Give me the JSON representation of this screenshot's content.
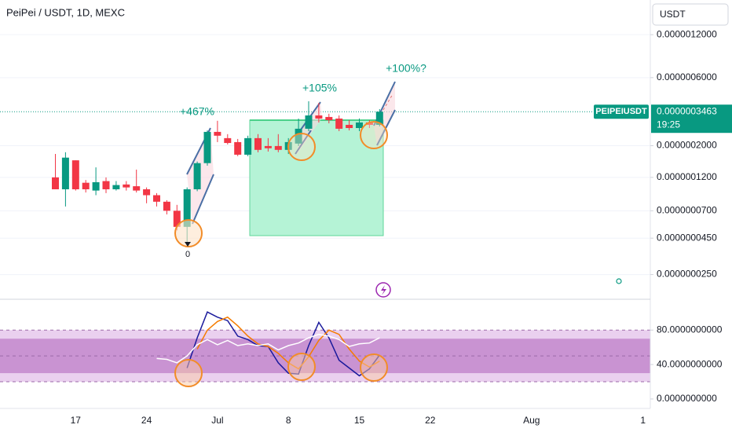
{
  "chart_data": [
    {
      "type": "candlestick",
      "title": "PeiPei / USDT, 1D, MEXC",
      "currency": "USDT",
      "symbol_label": "PEIPEIUSDT",
      "countdown": "19:25",
      "last_price": {
        "value": 3.463e-07,
        "label": "0.0000003463"
      },
      "annotations": [
        "+467%",
        "+105%",
        "+100%?",
        "0"
      ],
      "log_scale": true,
      "grid": true,
      "up_color": "#089981",
      "down_color": "#f23645",
      "ylim": [
        1.7e-08,
        2.1e-06
      ],
      "yticks": [
        {
          "value": 1.2e-06,
          "label": "0.0000012000"
        },
        {
          "value": 6e-07,
          "label": "0.0000006000"
        },
        {
          "value": 2e-07,
          "label": "0.0000002000"
        },
        {
          "value": 1.2e-07,
          "label": "0.0000001200"
        },
        {
          "value": 7e-08,
          "label": "0.0000000700"
        },
        {
          "value": 4.5e-08,
          "label": "0.0000000450"
        },
        {
          "value": 2.5e-08,
          "label": "0.0000000250"
        }
      ],
      "categories": [
        null,
        null,
        null,
        null,
        null,
        null,
        null,
        "17",
        null,
        null,
        null,
        null,
        null,
        null,
        "24",
        null,
        null,
        null,
        null,
        null,
        null,
        "Jul",
        null,
        null,
        null,
        null,
        null,
        null,
        "8",
        null,
        null,
        null,
        null,
        null,
        null,
        "15",
        null,
        null,
        null,
        null,
        null,
        null,
        "22",
        null,
        null,
        null,
        null,
        null,
        null,
        null,
        null,
        null,
        "Aug",
        null,
        null,
        null,
        null,
        null,
        null,
        null,
        null,
        null,
        null,
        "1"
      ],
      "open": [
        null,
        null,
        null,
        null,
        null,
        1.2e-07,
        9.9e-08,
        1.58e-07,
        1.1e-07,
        9.7e-08,
        1.13e-07,
        9.9e-08,
        1.07e-07,
        1.04e-07,
        9.9e-08,
        9e-08,
        8.1e-08,
        7e-08,
        5.4e-08,
        9.9e-08,
        1.51e-07,
        2.5e-07,
        2.26e-07,
        2.12e-07,
        1.73e-07,
        2.26e-07,
        1.99e-07,
        1.99e-07,
        1.87e-07,
        2.07e-07,
        2.63e-07,
        3.26e-07,
        3.18e-07,
        3.1e-07,
        2.8e-07,
        2.66e-07,
        2.91e-07,
        2.8e-07,
        null,
        null,
        null,
        null,
        null,
        null,
        null,
        null,
        null,
        null,
        null,
        null,
        null,
        null,
        null,
        null,
        null,
        null,
        null,
        null,
        null,
        null,
        null,
        null,
        null,
        null
      ],
      "high": [
        null,
        null,
        null,
        null,
        null,
        1.75e-07,
        1.8e-07,
        1.58e-07,
        1.15e-07,
        1.41e-07,
        1.2e-07,
        1.13e-07,
        1.13e-07,
        1.36e-07,
        1.02e-07,
        9.3e-08,
        8.3e-08,
        7.7e-08,
        1.02e-07,
        1.55e-07,
        2.56e-07,
        2.99e-07,
        2.41e-07,
        2.23e-07,
        2.35e-07,
        2.41e-07,
        2.26e-07,
        2.41e-07,
        2.26e-07,
        3.1e-07,
        4.1e-07,
        3.99e-07,
        3.35e-07,
        3.26e-07,
        3.02e-07,
        3.1e-07,
        3.02e-07,
        3.61e-07,
        null,
        null,
        null,
        null,
        null,
        null,
        null,
        null,
        null,
        null,
        null,
        null,
        null,
        null,
        null,
        null,
        null,
        null,
        null,
        null,
        null,
        null,
        null,
        null,
        null,
        null
      ],
      "low": [
        null,
        null,
        null,
        null,
        null,
        9.9e-08,
        7.5e-08,
        9.7e-08,
        9.4e-08,
        9e-08,
        9.3e-08,
        9.7e-08,
        9.7e-08,
        9.4e-08,
        7.9e-08,
        7.5e-08,
        6.6e-08,
        5.1e-08,
        4.1e-08,
        9.6e-08,
        1.45e-07,
        2.12e-07,
        2.04e-07,
        1.69e-07,
        1.69e-07,
        1.8e-07,
        1.82e-07,
        1.8e-07,
        1.75e-07,
        1.99e-07,
        2.53e-07,
        2.91e-07,
        2.87e-07,
        2.53e-07,
        2.56e-07,
        2.53e-07,
        2.66e-07,
        2.73e-07,
        null,
        null,
        null,
        null,
        null,
        null,
        null,
        null,
        null,
        null,
        null,
        null,
        null,
        null,
        null,
        null,
        null,
        null,
        null,
        null,
        null,
        null,
        null,
        null,
        null,
        null
      ],
      "close": [
        null,
        null,
        null,
        null,
        null,
        9.9e-08,
        1.65e-07,
        9.9e-08,
        9.9e-08,
        1.11e-07,
        9.9e-08,
        1.06e-07,
        1.02e-07,
        9.7e-08,
        9e-08,
        8.1e-08,
        7e-08,
        5.4e-08,
        9.9e-08,
        1.51e-07,
        2.5e-07,
        2.35e-07,
        2.09e-07,
        1.73e-07,
        2.26e-07,
        1.87e-07,
        1.92e-07,
        1.87e-07,
        2.12e-07,
        2.63e-07,
        3.26e-07,
        3.1e-07,
        3.02e-07,
        2.63e-07,
        2.66e-07,
        2.91e-07,
        2.8e-07,
        3.463e-07,
        null,
        null,
        null,
        null,
        null,
        null,
        null,
        null,
        null,
        null,
        null,
        null,
        null,
        null,
        null,
        null,
        null,
        null,
        null,
        null,
        null,
        null,
        null,
        null,
        null,
        null
      ]
    },
    {
      "type": "line",
      "ylim": [
        -11,
        114
      ],
      "yticks": [
        {
          "value": 80,
          "label": "80.0000000000"
        },
        {
          "value": 40,
          "label": "40.0000000000"
        },
        {
          "value": 0,
          "label": "0.0000000000"
        }
      ],
      "bands": [
        [
          20,
          80
        ],
        [
          30,
          70
        ]
      ],
      "band_colors": [
        "#ead0ef",
        "#c993d2"
      ],
      "levels": [
        80,
        50,
        20
      ],
      "series": [
        {
          "color": "#1a1a9c",
          "values": [
            null,
            null,
            null,
            null,
            null,
            null,
            null,
            null,
            null,
            null,
            null,
            null,
            null,
            null,
            null,
            null,
            null,
            null,
            36,
            71,
            101,
            95,
            91,
            73,
            69,
            62,
            61,
            42,
            30,
            29,
            62,
            89,
            71,
            45,
            36,
            27,
            35,
            51,
            null,
            null,
            null,
            null,
            null,
            null,
            null,
            null,
            null,
            null,
            null,
            null,
            null,
            null,
            null,
            null,
            null,
            null,
            null,
            null,
            null,
            null,
            null,
            null,
            null,
            null
          ]
        },
        {
          "color": "#f57c00",
          "values": [
            null,
            null,
            null,
            null,
            null,
            null,
            null,
            null,
            null,
            null,
            null,
            null,
            null,
            null,
            null,
            null,
            null,
            null,
            null,
            58,
            80,
            90,
            95,
            85,
            73,
            64,
            61,
            53,
            42,
            35,
            49,
            68,
            80,
            75,
            58,
            44,
            37,
            44,
            null,
            null,
            null,
            null,
            null,
            null,
            null,
            null,
            null,
            null,
            null,
            null,
            null,
            null,
            null,
            null,
            null,
            null,
            null,
            null,
            null,
            null,
            null,
            null,
            null,
            null
          ]
        },
        {
          "color": "#ffffff",
          "values": [
            null,
            null,
            null,
            null,
            null,
            null,
            null,
            null,
            null,
            null,
            null,
            null,
            null,
            null,
            null,
            47,
            46,
            42,
            50,
            63,
            69,
            63,
            68,
            62,
            64,
            62,
            64,
            57,
            62,
            65,
            71,
            75,
            73,
            69,
            61,
            64,
            65,
            71,
            null,
            null,
            null,
            null,
            null,
            null,
            null,
            null,
            null,
            null,
            null,
            null,
            null,
            null,
            null,
            null,
            null,
            null,
            null,
            null,
            null,
            null,
            null,
            null,
            null,
            null
          ]
        }
      ]
    }
  ]
}
